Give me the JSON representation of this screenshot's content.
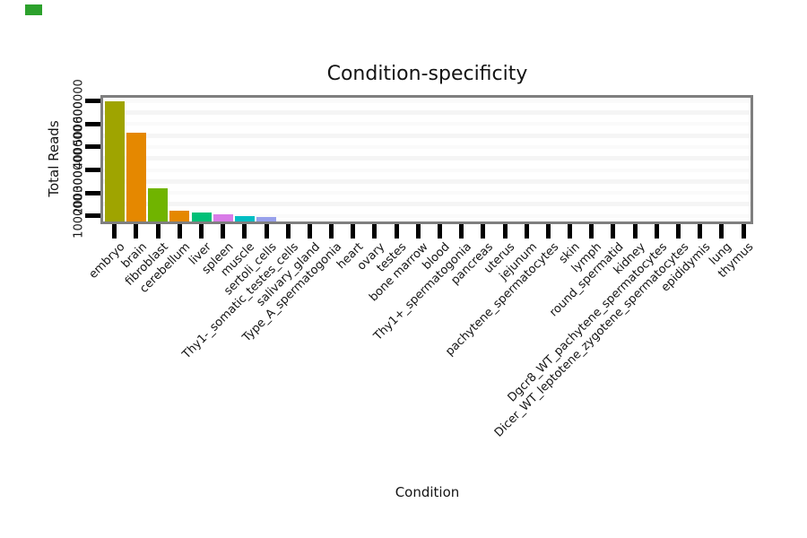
{
  "marker": {
    "color": "#2ca12c"
  },
  "chart_data": {
    "type": "bar",
    "title": "Condition-specificity",
    "xlabel": "Condition",
    "ylabel": "Total Reads",
    "categories": [
      "embryo",
      "brain",
      "fibroblast",
      "cerebellum",
      "liver",
      "spleen",
      "muscle",
      "sertoli_cells",
      "Thy1-_somatic_testes_cells",
      "salivary_gland",
      "Type_A_spermatogonia",
      "heart",
      "ovary",
      "testes",
      "bone marrow",
      "blood",
      "Thy1+_spermatogonia",
      "pancreas",
      "uterus",
      "jejunum",
      "pachytene_spermatocytes",
      "skin",
      "lymph",
      "round_spermatid",
      "kidney",
      "Dgcr8_WT_pachytene_spermatocytes",
      "Dicer_WT_leptotene_zygotene_spermatocytes",
      "epididymis",
      "lung",
      "thymus"
    ],
    "values": [
      600000,
      463000,
      222000,
      122000,
      115000,
      107000,
      99000,
      97000,
      0,
      0,
      0,
      0,
      0,
      0,
      0,
      0,
      0,
      0,
      0,
      0,
      0,
      0,
      0,
      0,
      0,
      0,
      0,
      0,
      0,
      0
    ],
    "bar_colors": [
      "#9fa400",
      "#e58800",
      "#70b400",
      "#e58800",
      "#00c078",
      "#d97be8",
      "#00bec3",
      "#98a1ec",
      "#999999",
      "#999999",
      "#999999",
      "#999999",
      "#999999",
      "#999999",
      "#999999",
      "#999999",
      "#999999",
      "#999999",
      "#999999",
      "#999999",
      "#999999",
      "#999999",
      "#999999",
      "#999999",
      "#999999",
      "#999999",
      "#999999",
      "#999999",
      "#999999",
      "#999999"
    ],
    "yticks": [
      100000,
      200000,
      300000,
      400000,
      500000,
      600000
    ],
    "ytick_labels": [
      "100000",
      "200000",
      "300000",
      "400000",
      "500000",
      "600000"
    ],
    "ylim_displayed": [
      75000,
      625000
    ],
    "x_tick_label_rotation_deg": 45,
    "grid": "faint horizontal major+minor lines",
    "legend": "none",
    "frame_color": "#7f7f7f",
    "tick_color": "#000000",
    "major_grid_color": "#fafafa",
    "minor_grid_color": "#f5f5f5"
  }
}
